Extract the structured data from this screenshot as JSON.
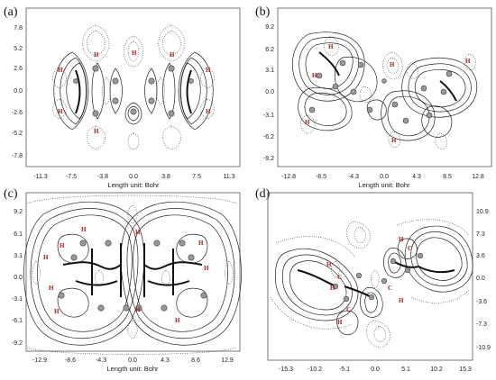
{
  "panels": [
    {
      "id": "a",
      "letter": "(a)",
      "xlabel": "Length unit: Bohr",
      "xticks": [
        "-11.3",
        "-7.5",
        "-3.8",
        "0.0",
        "3.8",
        "7.5",
        "11.3"
      ],
      "yticks": [
        "7.8",
        "5.2",
        "2.6",
        "0.0",
        "-2.6",
        "-5.2",
        "-7.8"
      ],
      "yticks_side": "left",
      "atom_labels": [
        "H",
        "H",
        "H",
        "H",
        "H",
        "H",
        "H",
        "H"
      ]
    },
    {
      "id": "b",
      "letter": "(b)",
      "xlabel": "Length unit: Bohr",
      "xticks": [
        "-12.8",
        "-8.5",
        "-4.3",
        "0.0",
        "4.3",
        "8.5",
        "12.8"
      ],
      "yticks": [
        "9.2",
        "6.2",
        "3.1",
        "0.0",
        "-3.1",
        "-6.2",
        "-9.2"
      ],
      "yticks_side": "left",
      "atom_labels": [
        "H",
        "H",
        "H",
        "H",
        "H",
        "H"
      ]
    },
    {
      "id": "c",
      "letter": "(c)",
      "xlabel": "Length unit: Bohr",
      "xticks": [
        "-12.9",
        "-8.6",
        "-4.3",
        "0.0",
        "4.3",
        "8.6",
        "12.9"
      ],
      "yticks": [
        "9.2",
        "6.1",
        "3.1",
        "0.0",
        "-3.1",
        "-6.1",
        "-9.2"
      ],
      "yticks_side": "left",
      "atom_labels": [
        "H",
        "H",
        "H",
        "H",
        "H",
        "H",
        "H",
        "H",
        "H",
        "H"
      ]
    },
    {
      "id": "d",
      "letter": "(d)",
      "xlabel": "",
      "xticks": [
        "-15.3",
        "-10.2",
        "-5.1",
        "0.0",
        "5.1",
        "10.2",
        "15.3"
      ],
      "yticks": [
        "10.9",
        "7.3",
        "3.6",
        "0.0",
        "-3.6",
        "-7.3",
        "-10.9"
      ],
      "yticks_side": "right",
      "atom_labels": [
        "H",
        "H",
        "C",
        "C",
        "H",
        "H",
        "C",
        "C",
        "H"
      ]
    }
  ]
}
